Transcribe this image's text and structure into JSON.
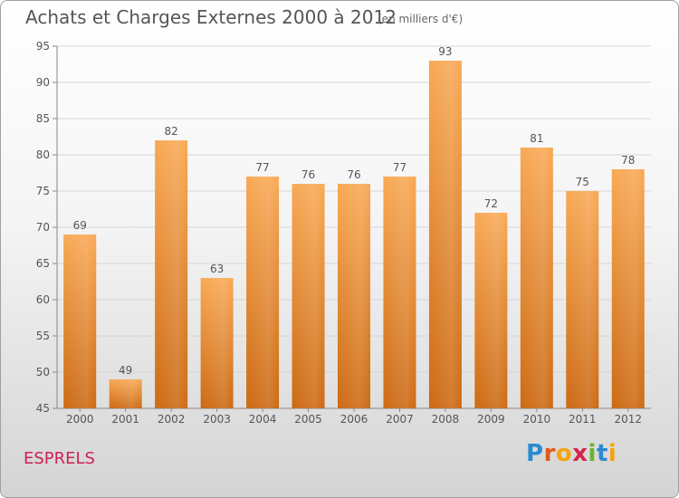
{
  "title": "Achats et Charges Externes 2000 à 2012",
  "subtitle": "(en milliers d'€)",
  "place": "ESPRELS",
  "logo": "Proxiti",
  "colors": {
    "bar_top": "#f8a955",
    "bar_bottom": "#cc6a14",
    "place": "#cc2255"
  },
  "chart_data": {
    "type": "bar",
    "title": "Achats et Charges Externes 2000 à 2012",
    "subtitle": "(en milliers d'€)",
    "xlabel": "",
    "ylabel": "",
    "categories": [
      "2000",
      "2001",
      "2002",
      "2003",
      "2004",
      "2005",
      "2006",
      "2007",
      "2008",
      "2009",
      "2010",
      "2011",
      "2012"
    ],
    "values": [
      69,
      49,
      82,
      63,
      77,
      76,
      76,
      77,
      93,
      72,
      81,
      75,
      78
    ],
    "ylim": [
      45,
      95
    ],
    "yticks": [
      45,
      50,
      55,
      60,
      65,
      70,
      75,
      80,
      85,
      90,
      95
    ],
    "grid": true
  }
}
